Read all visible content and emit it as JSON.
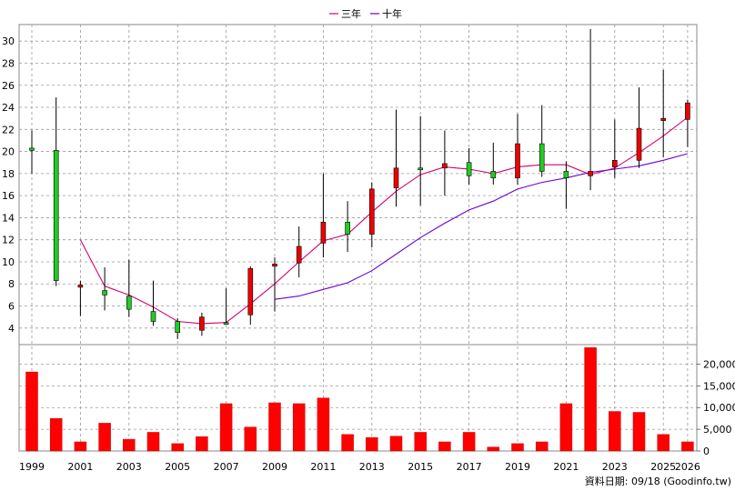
{
  "legend": [
    {
      "label": "三年",
      "color": "#d6006f"
    },
    {
      "label": "十年",
      "color": "#6a00d8"
    }
  ],
  "footer": "資料日期: 09/18 (Goodinfo.tw)",
  "chart_data": {
    "type": "candlestick+bar",
    "years": [
      1999,
      2000,
      2001,
      2002,
      2003,
      2004,
      2005,
      2006,
      2007,
      2008,
      2009,
      2010,
      2011,
      2012,
      2013,
      2014,
      2015,
      2016,
      2017,
      2018,
      2019,
      2020,
      2021,
      2022,
      2023,
      2024,
      2025,
      2026
    ],
    "x_tick_labels": [
      "1999",
      "2001",
      "2003",
      "2005",
      "2007",
      "2009",
      "2011",
      "2013",
      "2015",
      "2017",
      "2019",
      "2021",
      "2023",
      "2025",
      "2026"
    ],
    "price_axis": {
      "ticks": [
        4,
        6,
        8,
        10,
        12,
        14,
        16,
        18,
        20,
        22,
        24,
        26,
        28,
        30
      ],
      "ylim": [
        2.5,
        31.5
      ]
    },
    "volume_axis": {
      "ticks": [
        0,
        5000,
        10000,
        15000,
        20000
      ],
      "tick_labels": [
        "0",
        "5,000",
        "10,000",
        "15,000",
        "20,000"
      ],
      "ylim": [
        0,
        24500
      ]
    },
    "candles": [
      {
        "year": 1999,
        "open": 20.1,
        "close": 20.3,
        "high": 21.9,
        "low": 18.0
      },
      {
        "year": 2000,
        "open": 8.3,
        "close": 20.1,
        "high": 24.9,
        "low": 7.8
      },
      {
        "year": 2001,
        "open": 7.9,
        "close": 7.7,
        "high": 8.3,
        "low": 5.1
      },
      {
        "year": 2002,
        "open": 7.0,
        "close": 7.4,
        "high": 9.5,
        "low": 5.6
      },
      {
        "year": 2003,
        "open": 5.7,
        "close": 6.9,
        "high": 10.2,
        "low": 5.0
      },
      {
        "year": 2004,
        "open": 4.6,
        "close": 5.5,
        "high": 8.3,
        "low": 4.2
      },
      {
        "year": 2005,
        "open": 3.6,
        "close": 4.6,
        "high": 4.9,
        "low": 3.0
      },
      {
        "year": 2006,
        "open": 5.0,
        "close": 3.8,
        "high": 5.4,
        "low": 3.3
      },
      {
        "year": 2007,
        "open": 4.5,
        "close": 4.5,
        "high": 7.6,
        "low": 4.4
      },
      {
        "year": 2008,
        "open": 9.4,
        "close": 5.2,
        "high": 9.6,
        "low": 4.3
      },
      {
        "year": 2009,
        "open": 9.8,
        "close": 9.6,
        "high": 10.4,
        "low": 5.5
      },
      {
        "year": 2010,
        "open": 11.4,
        "close": 9.9,
        "high": 13.2,
        "low": 8.6
      },
      {
        "year": 2011,
        "open": 13.6,
        "close": 11.7,
        "high": 18.0,
        "low": 10.4
      },
      {
        "year": 2012,
        "open": 12.5,
        "close": 13.6,
        "high": 15.5,
        "low": 10.9
      },
      {
        "year": 2013,
        "open": 16.6,
        "close": 12.5,
        "high": 17.2,
        "low": 11.3
      },
      {
        "year": 2014,
        "open": 18.5,
        "close": 16.7,
        "high": 23.8,
        "low": 15.0
      },
      {
        "year": 2015,
        "open": 18.5,
        "close": 18.5,
        "high": 23.2,
        "low": 15.1
      },
      {
        "year": 2016,
        "open": 18.9,
        "close": 18.5,
        "high": 21.9,
        "low": 16.0
      },
      {
        "year": 2017,
        "open": 17.8,
        "close": 19.0,
        "high": 20.3,
        "low": 17.0
      },
      {
        "year": 2018,
        "open": 17.6,
        "close": 18.2,
        "high": 20.8,
        "low": 17.0
      },
      {
        "year": 2019,
        "open": 20.7,
        "close": 17.6,
        "high": 23.4,
        "low": 17.0
      },
      {
        "year": 2020,
        "open": 18.2,
        "close": 20.7,
        "high": 24.2,
        "low": 17.7
      },
      {
        "year": 2021,
        "open": 17.6,
        "close": 18.2,
        "high": 19.1,
        "low": 14.8
      },
      {
        "year": 2022,
        "open": 18.2,
        "close": 17.8,
        "high": 31.1,
        "low": 16.5
      },
      {
        "year": 2023,
        "open": 19.2,
        "close": 18.6,
        "high": 22.9,
        "low": 17.6
      },
      {
        "year": 2024,
        "open": 22.1,
        "close": 19.2,
        "high": 25.8,
        "low": 18.5
      },
      {
        "year": 2025,
        "open": 23.0,
        "close": 22.8,
        "high": 27.4,
        "low": 19.5
      },
      {
        "year": 2026,
        "open": 24.4,
        "close": 22.9,
        "high": 24.7,
        "low": 20.4
      }
    ],
    "series": [
      {
        "name": "三年",
        "x": [
          2001,
          2002,
          2003,
          2004,
          2005,
          2006,
          2007,
          2008,
          2009,
          2010,
          2011,
          2012,
          2013,
          2014,
          2015,
          2016,
          2017,
          2018,
          2019,
          2020,
          2021,
          2022,
          2023,
          2024,
          2025,
          2026
        ],
        "values": [
          12.0,
          7.8,
          7.0,
          5.9,
          4.6,
          4.4,
          4.5,
          6.2,
          8.0,
          10.0,
          11.9,
          12.5,
          14.5,
          16.4,
          17.9,
          18.6,
          18.4,
          18.0,
          18.6,
          18.8,
          18.8,
          17.9,
          18.5,
          19.9,
          21.4,
          23.1
        ]
      },
      {
        "name": "十年",
        "x": [
          2009,
          2010,
          2011,
          2012,
          2013,
          2014,
          2015,
          2016,
          2017,
          2018,
          2019,
          2020,
          2021,
          2022,
          2023,
          2024,
          2025,
          2026
        ],
        "values": [
          6.6,
          6.9,
          7.5,
          8.1,
          9.2,
          10.7,
          12.2,
          13.5,
          14.7,
          15.5,
          16.6,
          17.2,
          17.6,
          18.1,
          18.4,
          18.7,
          19.2,
          19.8
        ]
      }
    ],
    "volumes": [
      18200,
      7500,
      2100,
      6400,
      2700,
      4300,
      1700,
      3300,
      10900,
      5500,
      11100,
      10900,
      12200,
      3800,
      3100,
      3400,
      4300,
      2100,
      4300,
      900,
      1700,
      2100,
      10900,
      23800,
      9100,
      8900,
      3800,
      2100
    ],
    "grid": true,
    "legend_position": "top-center"
  }
}
